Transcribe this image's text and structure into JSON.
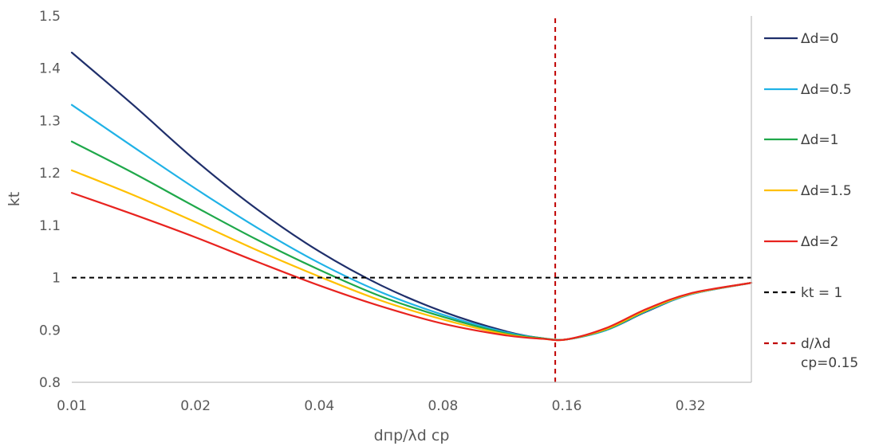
{
  "chart_data": {
    "type": "line",
    "title": "",
    "xlabel": "dпр/λd ср",
    "ylabel": "kt",
    "x_scale": "log2",
    "xlim": [
      0.01,
      0.45
    ],
    "ylim": [
      0.8,
      1.5
    ],
    "x_ticks": [
      "0.01",
      "0.02",
      "0.04",
      "0.08",
      "0.16",
      "0.32"
    ],
    "x_tick_values": [
      0.01,
      0.02,
      0.04,
      0.08,
      0.16,
      0.32
    ],
    "y_ticks": [
      "0.8",
      "0.9",
      "1",
      "1.1",
      "1.2",
      "1.3",
      "1.4",
      "1.5"
    ],
    "y_tick_values": [
      0.8,
      0.9,
      1.0,
      1.1,
      1.2,
      1.3,
      1.4,
      1.5
    ],
    "grid": false,
    "legend_position": "right",
    "series": [
      {
        "name": "Δd=0",
        "color": "#1f2f6b",
        "dash": "solid",
        "x": [
          0.01,
          0.0141,
          0.02,
          0.0283,
          0.04,
          0.0566,
          0.08,
          0.113,
          0.14,
          0.16,
          0.2,
          0.25,
          0.32,
          0.45
        ],
        "y": [
          1.43,
          1.33,
          1.224,
          1.13,
          1.05,
          0.985,
          0.935,
          0.898,
          0.884,
          0.882,
          0.9,
          0.935,
          0.968,
          0.99
        ]
      },
      {
        "name": "Δd=0.5",
        "color": "#20b2e6",
        "dash": "solid",
        "x": [
          0.01,
          0.0141,
          0.02,
          0.0283,
          0.04,
          0.0566,
          0.08,
          0.113,
          0.14,
          0.16,
          0.2,
          0.25,
          0.32,
          0.45
        ],
        "y": [
          1.33,
          1.25,
          1.17,
          1.095,
          1.028,
          0.972,
          0.929,
          0.896,
          0.884,
          0.882,
          0.9,
          0.936,
          0.968,
          0.99
        ]
      },
      {
        "name": "Δd=1",
        "color": "#1fa84a",
        "dash": "solid",
        "x": [
          0.01,
          0.0141,
          0.02,
          0.0283,
          0.04,
          0.0566,
          0.08,
          0.113,
          0.14,
          0.16,
          0.2,
          0.25,
          0.32,
          0.45
        ],
        "y": [
          1.26,
          1.2,
          1.135,
          1.072,
          1.015,
          0.964,
          0.925,
          0.894,
          0.884,
          0.882,
          0.901,
          0.937,
          0.969,
          0.99
        ]
      },
      {
        "name": "Δd=1.5",
        "color": "#ffc000",
        "dash": "solid",
        "x": [
          0.01,
          0.0141,
          0.02,
          0.0283,
          0.04,
          0.0566,
          0.08,
          0.113,
          0.14,
          0.16,
          0.2,
          0.25,
          0.32,
          0.45
        ],
        "y": [
          1.205,
          1.158,
          1.106,
          1.052,
          1.002,
          0.956,
          0.92,
          0.892,
          0.883,
          0.882,
          0.902,
          0.938,
          0.969,
          0.99
        ]
      },
      {
        "name": "Δd=2",
        "color": "#e8231f",
        "dash": "solid",
        "x": [
          0.01,
          0.0141,
          0.02,
          0.0283,
          0.04,
          0.0566,
          0.08,
          0.113,
          0.14,
          0.16,
          0.2,
          0.25,
          0.32,
          0.45
        ],
        "y": [
          1.162,
          1.121,
          1.077,
          1.03,
          0.985,
          0.945,
          0.912,
          0.89,
          0.883,
          0.882,
          0.904,
          0.94,
          0.97,
          0.99
        ]
      },
      {
        "name": "kt = 1",
        "color": "#000000",
        "dash": "dashed",
        "x": [
          0.01,
          0.45
        ],
        "y": [
          1.0,
          1.0
        ]
      },
      {
        "name": "d/λd cp=0.15",
        "legend_lines": [
          "d/λd",
          "cp=0.15"
        ],
        "color": "#c00000",
        "dash": "dashed",
        "x": [
          0.15,
          0.15
        ],
        "y": [
          0.8,
          1.5
        ]
      }
    ]
  }
}
